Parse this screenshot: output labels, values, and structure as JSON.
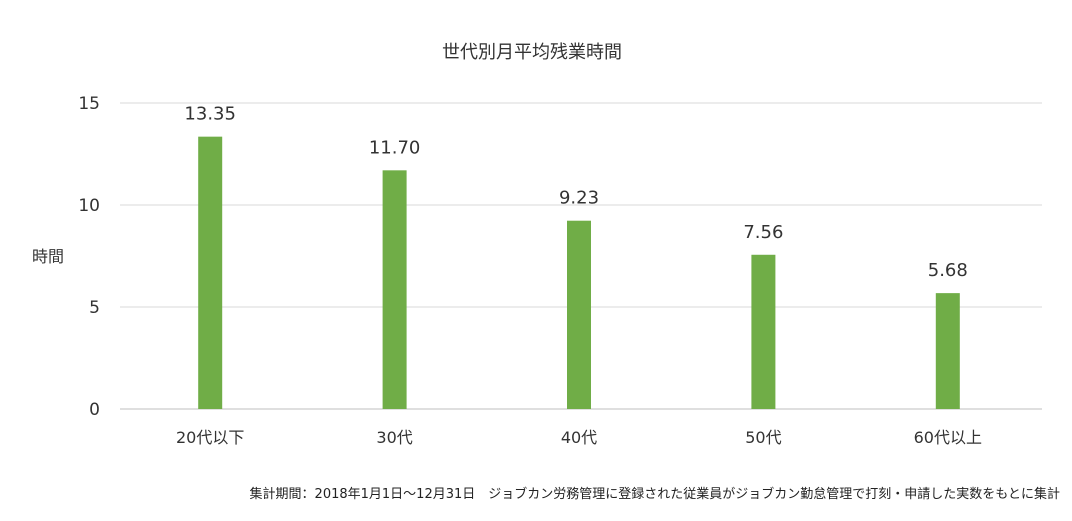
{
  "chart_data": {
    "type": "bar",
    "title": "世代別月平均残業時間",
    "ylabel": "時間",
    "xlabel": "",
    "categories": [
      "20代以下",
      "30代",
      "40代",
      "50代",
      "60代以上"
    ],
    "values": [
      13.35,
      11.7,
      9.23,
      7.56,
      5.68
    ],
    "value_labels": [
      "13.35",
      "11.70",
      "9.23",
      "7.56",
      "5.68"
    ],
    "ylim": [
      0,
      15
    ],
    "yticks": [
      0,
      5,
      10,
      15
    ],
    "grid": true,
    "legend": "none",
    "bar_color": "#70AD47",
    "grid_color": "#D9D9D9"
  },
  "footnote": "集計期間：2018年1月1日〜12月31日　ジョブカン労務管理に登録された従業員がジョブカン勤怠管理で打刻・申請した実数をもとに集計"
}
